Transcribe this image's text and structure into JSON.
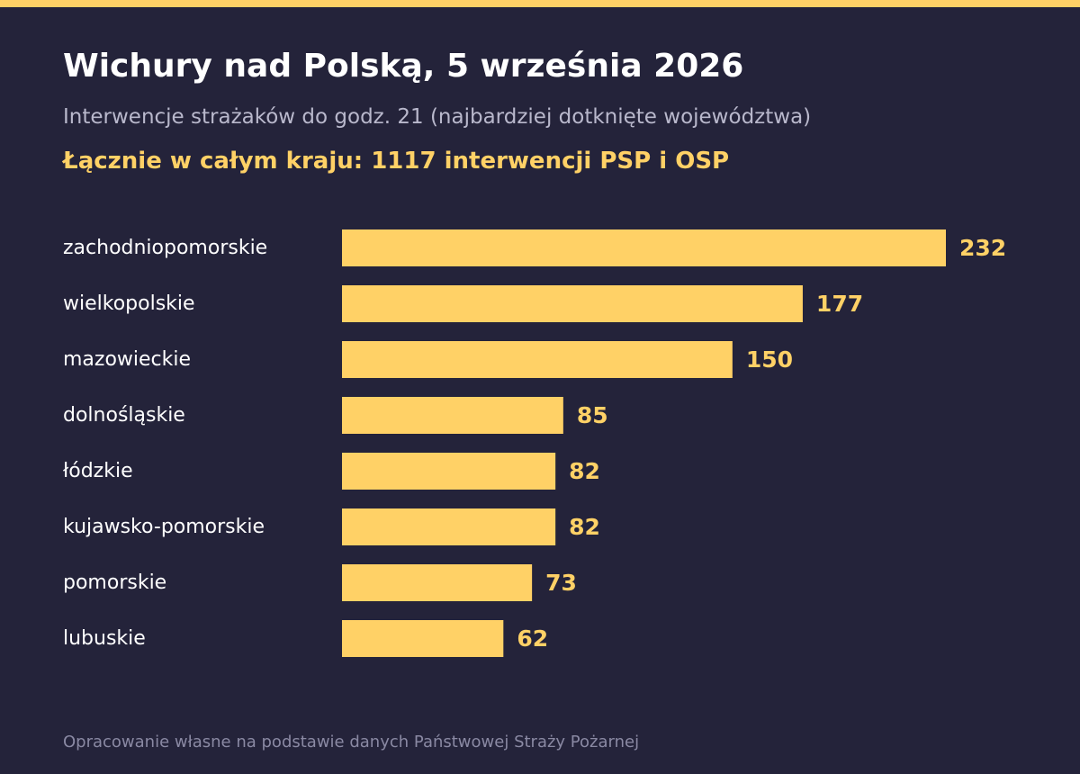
{
  "header": {
    "title": "Wichury nad Polską, 5 września 2026",
    "subtitle": "Interwencje strażaków do godz. 21 (najbardziej dotknięte województwa)",
    "total": "Łącznie w całym kraju: 1117 interwencji PSP i OSP"
  },
  "footer": {
    "source": "Opracowanie własne na podstawie danych Państwowej Straży Pożarnej"
  },
  "colors": {
    "background": "#24233a",
    "accent": "#ffd166",
    "title": "#ffffff",
    "subtitle": "#b9b8cc",
    "footer": "#8a89a3"
  },
  "chart_data": {
    "type": "bar",
    "orientation": "horizontal",
    "categories": [
      "zachodniopomorskie",
      "wielkopolskie",
      "mazowieckie",
      "dolnośląskie",
      "łódzkie",
      "kujawsko-pomorskie",
      "pomorskie",
      "lubuskie"
    ],
    "values": [
      232,
      177,
      150,
      85,
      82,
      82,
      73,
      62
    ],
    "xlim": [
      0,
      232
    ],
    "grid": false,
    "legend": "none",
    "data_labels": true,
    "bar_color": "#ffd166"
  }
}
